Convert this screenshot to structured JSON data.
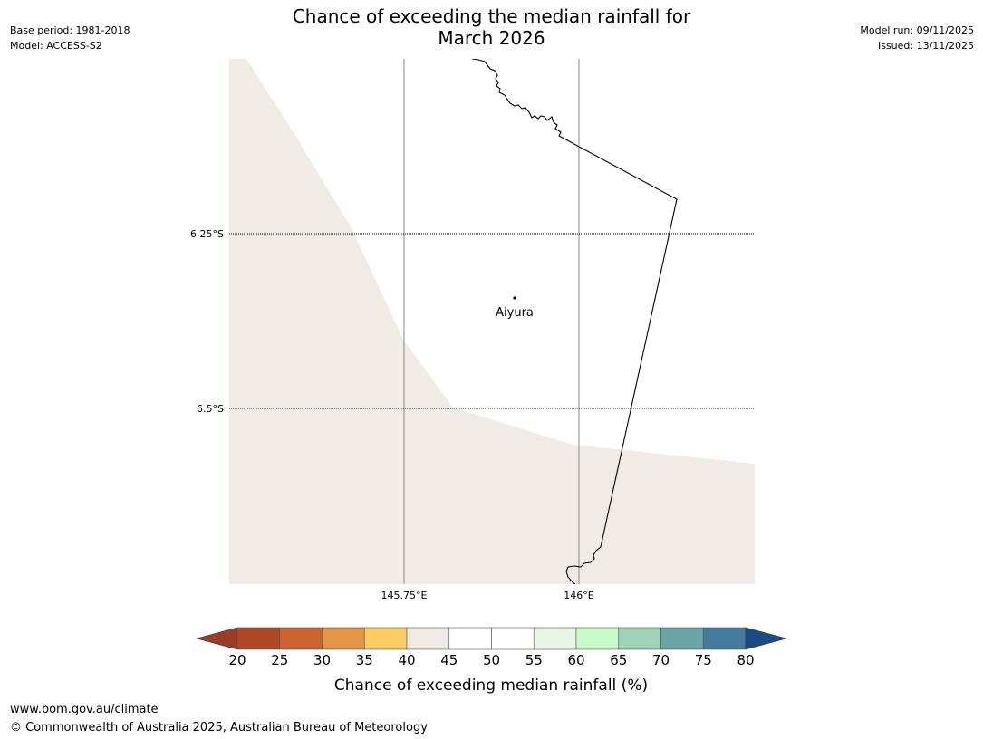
{
  "header": {
    "base_period": "Base period: 1981-2018",
    "model": "Model: ACCESS-S2",
    "title_line1": "Chance of exceeding the median rainfall for",
    "title_line2": "March 2026",
    "model_run": "Model run: 09/11/2025",
    "issued": "Issued: 13/11/2025"
  },
  "map": {
    "lat_labels": [
      "6.25°S",
      "6.5°S"
    ],
    "lon_labels": [
      "145.75°E",
      "146°E"
    ],
    "place": "Aiyura",
    "land_fill": "#f0ebe4"
  },
  "legend": {
    "ticks": [
      "20",
      "25",
      "30",
      "35",
      "40",
      "45",
      "50",
      "55",
      "60",
      "65",
      "70",
      "75",
      "80"
    ],
    "colors": {
      "below_20": "#9c3b26",
      "20_25": "#b04826",
      "25_30": "#cd6331",
      "30_35": "#e49648",
      "35_40": "#fdcd64",
      "40_45": "#f0ebe4",
      "45_50": "#ffffff",
      "50_55": "#ffffff",
      "55_60": "#e8f6e6",
      "60_65": "#c8fbc8",
      "65_70": "#a0d2b8",
      "70_75": "#6ca5a8",
      "75_80": "#427b9b",
      "above_80": "#174c86"
    },
    "label": "Chance of exceeding median rainfall (%)"
  },
  "footer": {
    "url": "www.bom.gov.au/climate",
    "copyright": "© Commonwealth of Australia 2025, Australian Bureau of Meteorology"
  }
}
